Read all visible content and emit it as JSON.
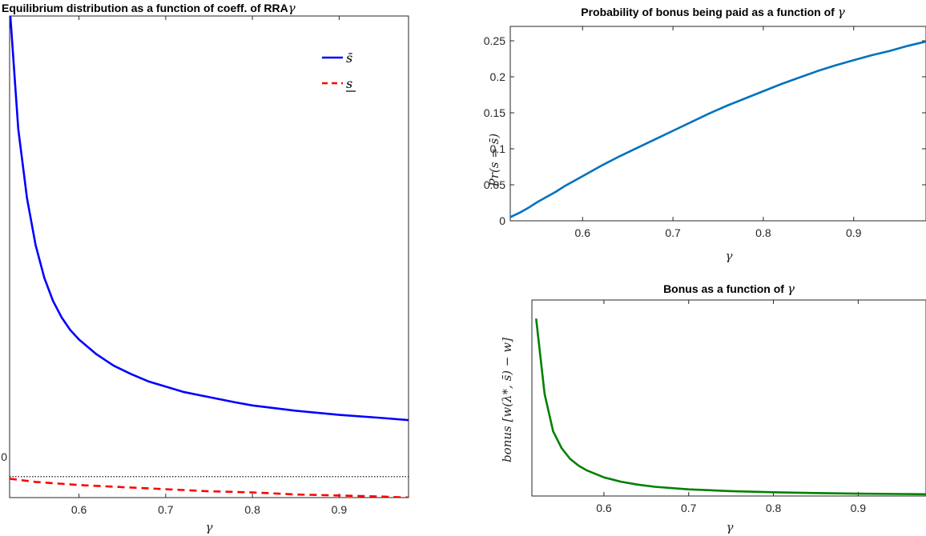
{
  "chart_data": [
    {
      "type": "line",
      "title": "Equilibrium distribution as a function of coeff. of RRA",
      "title_symbol": "γ",
      "xlabel": "γ",
      "ylabel": "",
      "xlim": [
        0.52,
        0.98
      ],
      "ylim": [
        -0.2,
        4.4
      ],
      "x_ticks": [
        "0.6",
        "0.7",
        "0.8",
        "0.9"
      ],
      "y_tick_label": "0",
      "reference_line": {
        "y": 0,
        "style": "dotted",
        "color": "#000000"
      },
      "legend_position": "top-right",
      "series": [
        {
          "name": "s̄",
          "color": "#0000ff",
          "style": "solid",
          "x": [
            0.52,
            0.53,
            0.54,
            0.55,
            0.56,
            0.57,
            0.58,
            0.59,
            0.6,
            0.62,
            0.64,
            0.66,
            0.68,
            0.7,
            0.72,
            0.75,
            0.78,
            0.8,
            0.85,
            0.9,
            0.95,
            0.98
          ],
          "y": [
            4.5,
            3.32,
            2.66,
            2.21,
            1.9,
            1.68,
            1.52,
            1.4,
            1.31,
            1.17,
            1.06,
            0.98,
            0.91,
            0.86,
            0.81,
            0.76,
            0.71,
            0.68,
            0.63,
            0.59,
            0.56,
            0.54
          ]
        },
        {
          "name": "s",
          "color": "#ff0000",
          "style": "dashed",
          "x": [
            0.52,
            0.55,
            0.6,
            0.65,
            0.7,
            0.75,
            0.8,
            0.85,
            0.9,
            0.95,
            0.98
          ],
          "y": [
            -0.02,
            -0.05,
            -0.08,
            -0.1,
            -0.12,
            -0.14,
            -0.15,
            -0.17,
            -0.18,
            -0.19,
            -0.2
          ]
        }
      ]
    },
    {
      "type": "line",
      "title": "Probability of bonus being paid as a function of",
      "title_symbol": "γ",
      "xlabel": "γ",
      "ylabel": "Pr(s = s̄)",
      "xlim": [
        0.52,
        0.98
      ],
      "ylim": [
        0,
        0.27
      ],
      "x_ticks": [
        "0.6",
        "0.7",
        "0.8",
        "0.9"
      ],
      "y_ticks": [
        "0",
        "0.05",
        "0.1",
        "0.15",
        "0.2",
        "0.25"
      ],
      "series": [
        {
          "name": "",
          "color": "#0072bd",
          "style": "solid",
          "x": [
            0.52,
            0.53,
            0.54,
            0.55,
            0.56,
            0.57,
            0.58,
            0.59,
            0.6,
            0.62,
            0.64,
            0.66,
            0.68,
            0.7,
            0.72,
            0.74,
            0.76,
            0.78,
            0.8,
            0.82,
            0.84,
            0.86,
            0.88,
            0.9,
            0.92,
            0.94,
            0.96,
            0.98
          ],
          "y": [
            0.005,
            0.011,
            0.018,
            0.026,
            0.033,
            0.04,
            0.048,
            0.055,
            0.062,
            0.076,
            0.089,
            0.101,
            0.113,
            0.125,
            0.137,
            0.149,
            0.16,
            0.17,
            0.18,
            0.19,
            0.199,
            0.208,
            0.216,
            0.223,
            0.23,
            0.236,
            0.243,
            0.249
          ]
        }
      ]
    },
    {
      "type": "line",
      "title": "Bonus as a function of",
      "title_symbol": "γ",
      "xlabel": "γ",
      "ylabel": "bonus [w(λ*, s̄) − w]",
      "xlim": [
        0.515,
        0.98
      ],
      "ylim": [
        0,
        1
      ],
      "x_ticks": [
        "0.6",
        "0.7",
        "0.8",
        "0.9"
      ],
      "series": [
        {
          "name": "",
          "color": "#008000",
          "style": "solid",
          "x": [
            0.52,
            0.53,
            0.54,
            0.55,
            0.56,
            0.57,
            0.58,
            0.6,
            0.62,
            0.64,
            0.66,
            0.7,
            0.75,
            0.8,
            0.85,
            0.9,
            0.95,
            0.98
          ],
          "y": [
            0.905,
            0.52,
            0.33,
            0.245,
            0.19,
            0.155,
            0.13,
            0.095,
            0.073,
            0.058,
            0.047,
            0.034,
            0.025,
            0.019,
            0.015,
            0.012,
            0.01,
            0.009
          ]
        }
      ]
    }
  ]
}
